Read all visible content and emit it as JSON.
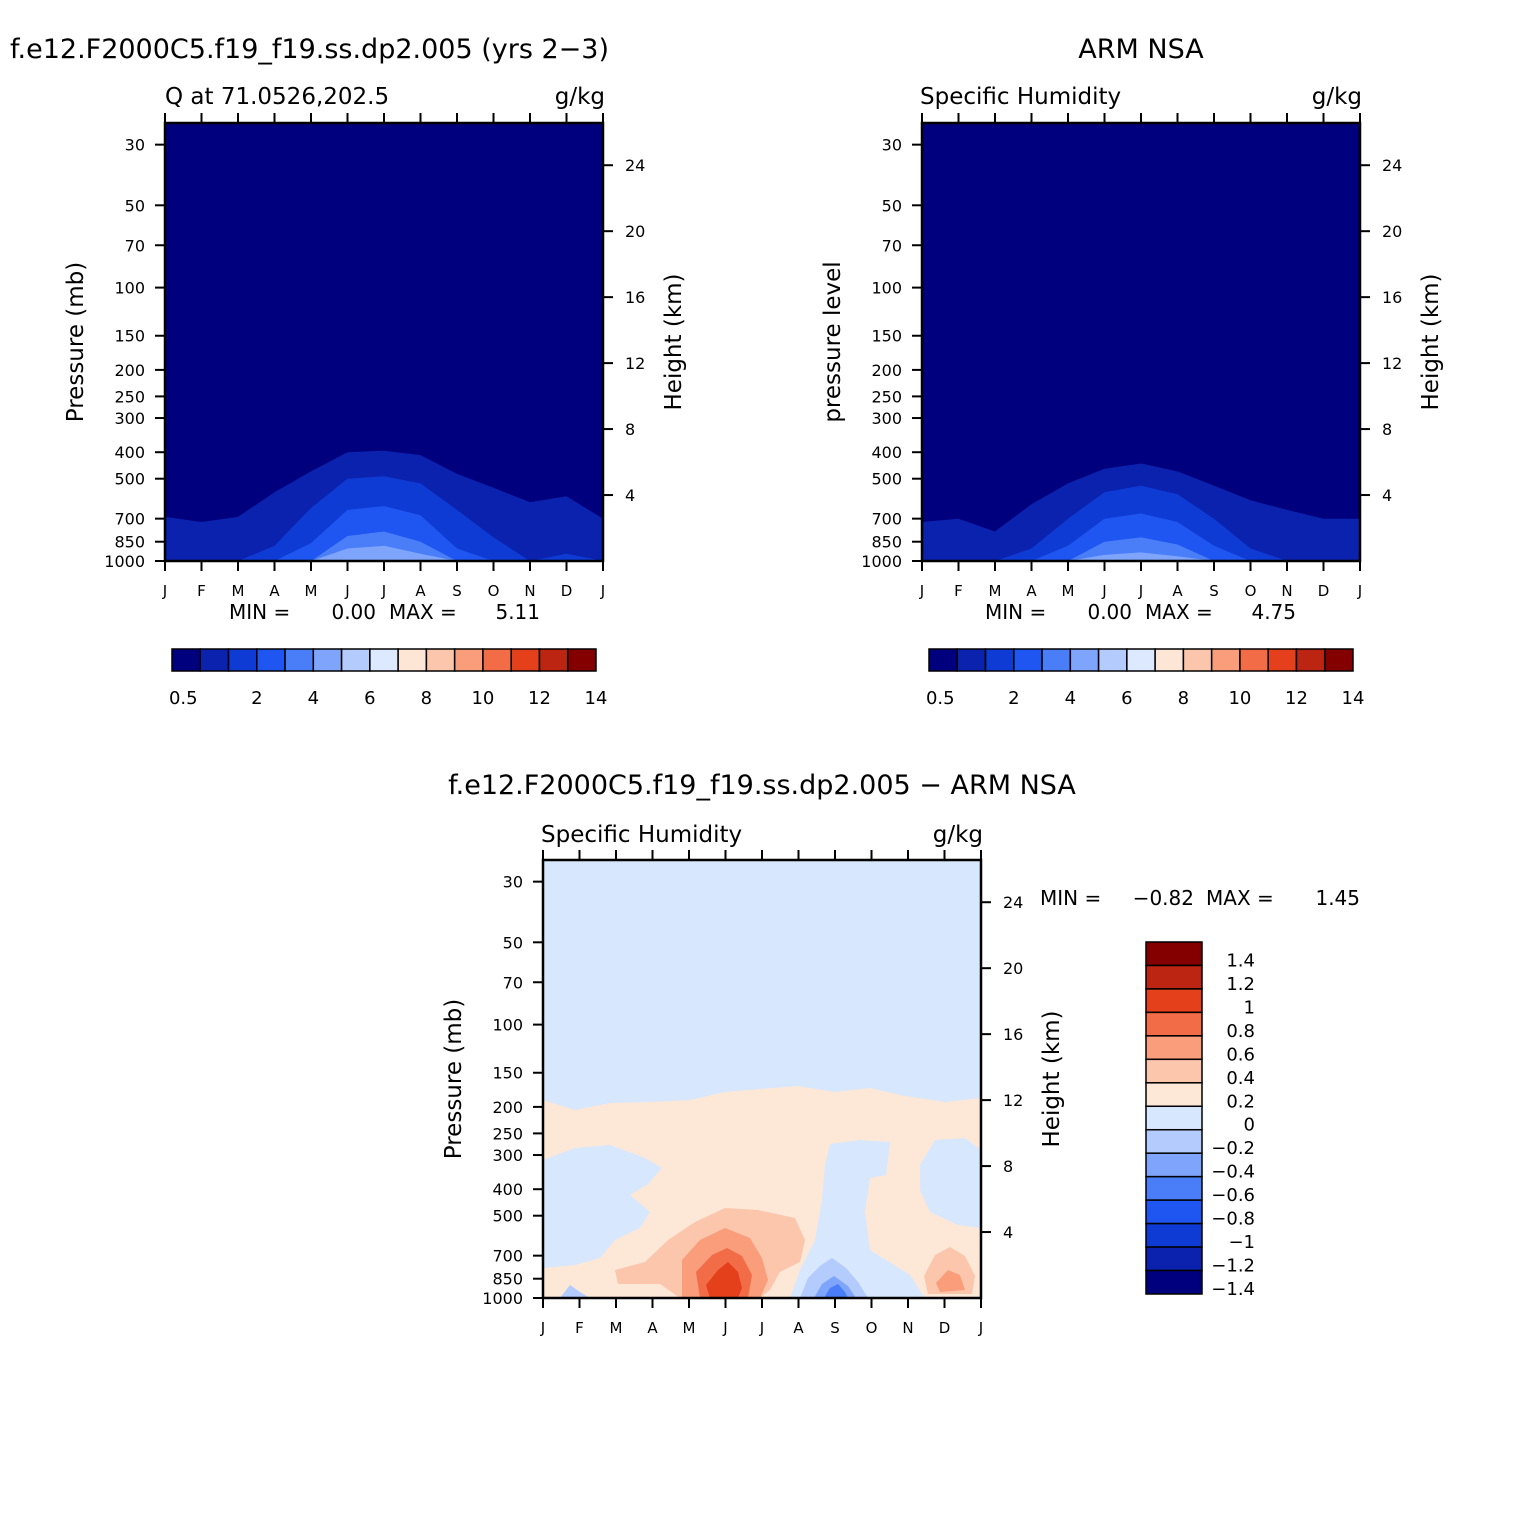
{
  "shared": {
    "pressure_ticks": [
      "30",
      "50",
      "70",
      "100",
      "150",
      "200",
      "250",
      "300",
      "400",
      "500",
      "700",
      "850",
      "1000"
    ],
    "pressure_values": [
      30,
      50,
      70,
      100,
      150,
      200,
      250,
      300,
      400,
      500,
      700,
      850,
      1000
    ],
    "height_ticks": [
      "4",
      "8",
      "12",
      "16",
      "20",
      "24"
    ],
    "height_values": [
      4,
      8,
      12,
      16,
      20,
      24
    ],
    "month_ticks": [
      "J",
      "F",
      "M",
      "A",
      "M",
      "J",
      "J",
      "A",
      "S",
      "O",
      "N",
      "D",
      "J"
    ],
    "axis_ranges": {
      "pressure_mb": [
        1000,
        25
      ],
      "height_km": [
        0,
        25
      ],
      "months": [
        0,
        12
      ]
    },
    "scale": "log-pressure",
    "grid": false
  },
  "chart_data": [
    {
      "type": "heatmap",
      "title": "f.e12.F2000C5.f19_f19.ss.dp2.005 (yrs 2−3)",
      "left_string": "Q at 71.0526,202.5",
      "right_string": "g/kg",
      "ylabel": "Pressure (mb)",
      "ylabel_right": "Height (km)",
      "min_label": "MIN =",
      "min_value": "0.00",
      "max_label": "MAX =",
      "max_value": "5.11",
      "levels": [
        0.5,
        1,
        2,
        3,
        4,
        5,
        6,
        7,
        8,
        9,
        10,
        11,
        12,
        13,
        14
      ],
      "colorbar_labels": [
        "0.5",
        "2",
        "4",
        "6",
        "8",
        "10",
        "12",
        "14"
      ],
      "colors": [
        "#00007f",
        "#0a22ad",
        "#0f3bd5",
        "#1f55f0",
        "#4a7ef8",
        "#7ea5fb",
        "#b3cbfd",
        "#dde9fe",
        "#fde6d5",
        "#fcc6ad",
        "#f99d7a",
        "#f36c48",
        "#e4401c",
        "#bb2511",
        "#840000"
      ],
      "top_pressure_by_month": {
        "months": [
          0,
          1,
          2,
          3,
          4,
          5,
          6,
          7,
          8,
          9,
          10,
          11,
          12
        ],
        "level_0_5": [
          690,
          720,
          690,
          560,
          470,
          400,
          395,
          410,
          480,
          540,
          610,
          580,
          700
        ],
        "level_1": [
          1000,
          1000,
          1000,
          880,
          640,
          500,
          490,
          520,
          650,
          820,
          1000,
          940,
          1000
        ],
        "level_2": [
          1000,
          1000,
          1000,
          1000,
          860,
          650,
          630,
          680,
          900,
          1000,
          1000,
          1000,
          1000
        ],
        "level_3": [
          1000,
          1000,
          1000,
          1000,
          1000,
          810,
          780,
          850,
          1000,
          1000,
          1000,
          1000,
          1000
        ],
        "level_4": [
          1000,
          1000,
          1000,
          1000,
          1000,
          900,
          880,
          940,
          1000,
          1000,
          1000,
          1000,
          1000
        ]
      }
    },
    {
      "type": "heatmap",
      "title": "ARM NSA",
      "left_string": "Specific Humidity",
      "right_string": "g/kg",
      "ylabel": "pressure level",
      "ylabel_right": "Height (km)",
      "min_label": "MIN =",
      "min_value": "0.00",
      "max_label": "MAX =",
      "max_value": "4.75",
      "levels": [
        0.5,
        1,
        2,
        3,
        4,
        5,
        6,
        7,
        8,
        9,
        10,
        11,
        12,
        13,
        14
      ],
      "colorbar_labels": [
        "0.5",
        "2",
        "4",
        "6",
        "8",
        "10",
        "12",
        "14"
      ],
      "colors": [
        "#00007f",
        "#0a22ad",
        "#0f3bd5",
        "#1f55f0",
        "#4a7ef8",
        "#7ea5fb",
        "#b3cbfd",
        "#dde9fe",
        "#fde6d5",
        "#fcc6ad",
        "#f99d7a",
        "#f36c48",
        "#e4401c",
        "#bb2511",
        "#840000"
      ],
      "top_pressure_by_month": {
        "months": [
          0,
          1,
          2,
          3,
          4,
          5,
          6,
          7,
          8,
          9,
          10,
          11,
          12
        ],
        "level_0_5": [
          720,
          700,
          780,
          620,
          520,
          460,
          440,
          470,
          530,
          600,
          650,
          700,
          700
        ],
        "level_1": [
          1000,
          1000,
          1000,
          900,
          700,
          560,
          530,
          570,
          700,
          900,
          1000,
          1000,
          1000
        ],
        "level_2": [
          1000,
          1000,
          1000,
          1000,
          880,
          700,
          670,
          720,
          880,
          1000,
          1000,
          1000,
          1000
        ],
        "level_3": [
          1000,
          1000,
          1000,
          1000,
          1000,
          850,
          820,
          870,
          1000,
          1000,
          1000,
          1000,
          1000
        ],
        "level_4": [
          1000,
          1000,
          1000,
          1000,
          1000,
          950,
          930,
          960,
          1000,
          1000,
          1000,
          1000,
          1000
        ]
      }
    },
    {
      "type": "heatmap",
      "title": "f.e12.F2000C5.f19_f19.ss.dp2.005 − ARM NSA",
      "left_string": "Specific Humidity",
      "right_string": "g/kg",
      "ylabel": "Pressure (mb)",
      "ylabel_right": "Height (km)",
      "min_label": "MIN =",
      "min_value": "−0.82",
      "max_label": "MAX =",
      "max_value": "1.45",
      "levels": [
        -1.4,
        -1.2,
        -1,
        -0.8,
        -0.6,
        -0.4,
        -0.2,
        0,
        0.2,
        0.4,
        0.6,
        0.8,
        1,
        1.2,
        1.4
      ],
      "colorbar_labels": [
        "1.4",
        "1.2",
        "1",
        "0.8",
        "0.6",
        "0.4",
        "0.2",
        "0",
        "−0.2",
        "−0.4",
        "−0.6",
        "−0.8",
        "−1",
        "−1.2",
        "−1.4"
      ],
      "colors": [
        "#00007f",
        "#0a22ad",
        "#0f3bd5",
        "#1f55f0",
        "#4a7ef8",
        "#7ea5fb",
        "#b3cbfd",
        "#d6e7fe",
        "#fde8d8",
        "#fcc6ad",
        "#f99d7a",
        "#f36c48",
        "#e4401c",
        "#bb2511",
        "#840000"
      ],
      "background_value_range": [
        -0.2,
        0
      ],
      "regions": [
        {
          "range": [
            0,
            0.2
          ],
          "description": "positive band 200–700 mb"
        },
        {
          "range": [
            0.2,
            0.8
          ],
          "month_center": 5,
          "pressure_top": 520
        },
        {
          "range": [
            0.8,
            1.45
          ],
          "month_center": 5,
          "pressure_top": 760
        },
        {
          "range": [
            -0.82,
            -0.2
          ],
          "month_center": 8,
          "pressure_top": 700
        },
        {
          "range": [
            0.2,
            0.6
          ],
          "month_center": 11,
          "pressure_top": 700
        }
      ]
    }
  ]
}
